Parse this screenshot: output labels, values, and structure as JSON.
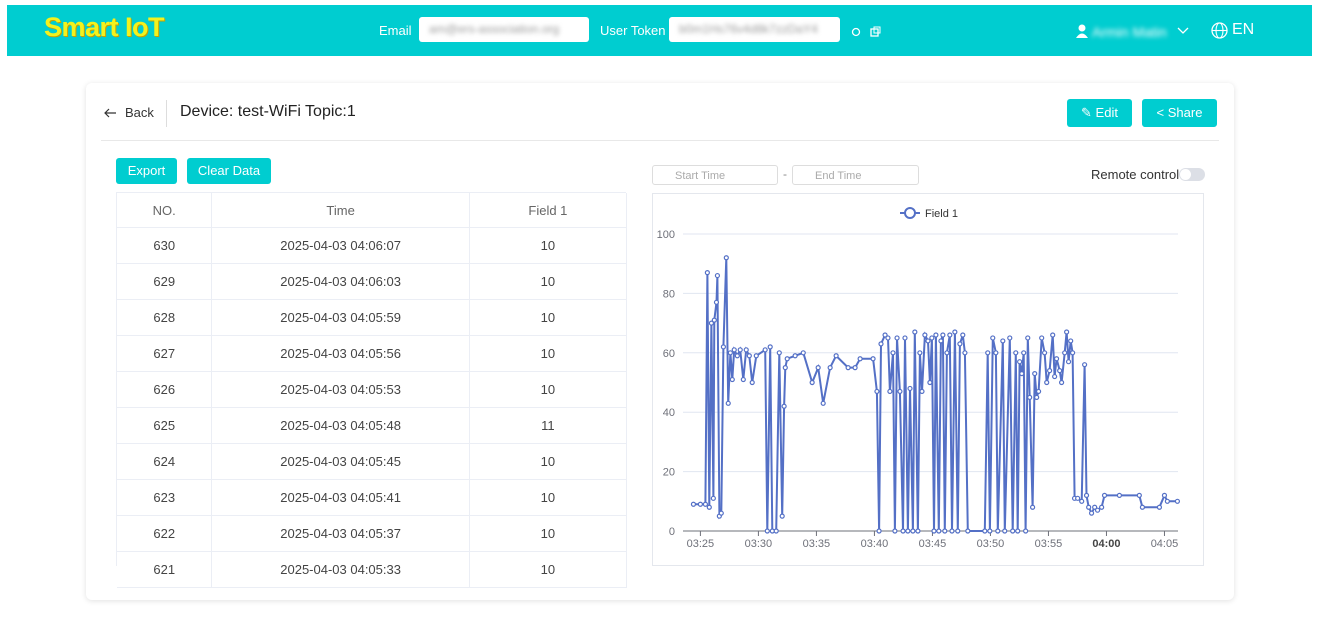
{
  "header": {
    "logo": "Smart IoT",
    "email_label": "Email",
    "email_value": "am@ers-association.org",
    "token_label": "User Token",
    "token_value": "b0m1Hs76v4d8k7zzDaY4",
    "user_name": "Armin Matin",
    "language": "EN"
  },
  "toolbar": {
    "back": "Back",
    "device_title": "Device: test-WiFi Topic:1",
    "edit": "Edit",
    "share": "Share"
  },
  "actions": {
    "export": "Export",
    "clear": "Clear Data"
  },
  "filters": {
    "start_time": "Start Time",
    "end_time": "End Time",
    "remote_control": "Remote control"
  },
  "table": {
    "columns": [
      "NO.",
      "Time",
      "Field 1"
    ],
    "rows": [
      [
        630,
        "2025-04-03 04:06:07",
        10
      ],
      [
        629,
        "2025-04-03 04:06:03",
        10
      ],
      [
        628,
        "2025-04-03 04:05:59",
        10
      ],
      [
        627,
        "2025-04-03 04:05:56",
        10
      ],
      [
        626,
        "2025-04-03 04:05:53",
        10
      ],
      [
        625,
        "2025-04-03 04:05:48",
        11
      ],
      [
        624,
        "2025-04-03 04:05:45",
        10
      ],
      [
        623,
        "2025-04-03 04:05:41",
        10
      ],
      [
        622,
        "2025-04-03 04:05:37",
        10
      ],
      [
        621,
        "2025-04-03 04:05:33",
        10
      ]
    ]
  },
  "chart_data": {
    "type": "line",
    "x": [
      "03:24:24",
      "03:25:00",
      "03:25:26",
      "03:25:36",
      "03:25:46",
      "03:25:57",
      "03:26:07",
      "03:26:12",
      "03:26:23",
      "03:26:28",
      "03:26:38",
      "03:26:48",
      "03:26:59",
      "03:27:14",
      "03:27:24",
      "03:27:35",
      "03:27:45",
      "03:27:55",
      "03:28:11",
      "03:28:26",
      "03:28:42",
      "03:28:57",
      "03:29:13",
      "03:29:28",
      "03:29:49",
      "03:30:35",
      "03:30:46",
      "03:31:01",
      "03:31:12",
      "03:31:32",
      "03:31:48",
      "03:32:03",
      "03:32:13",
      "03:32:19",
      "03:32:29",
      "03:33:10",
      "03:33:52",
      "03:34:38",
      "03:35:09",
      "03:35:35",
      "03:36:11",
      "03:36:42",
      "03:37:44",
      "03:38:20",
      "03:38:46",
      "03:39:53",
      "03:40:13",
      "03:40:24",
      "03:40:34",
      "03:40:55",
      "03:41:10",
      "03:41:20",
      "03:41:36",
      "03:41:46",
      "03:41:57",
      "03:42:12",
      "03:42:28",
      "03:42:38",
      "03:42:53",
      "03:43:04",
      "03:43:19",
      "03:43:29",
      "03:43:45",
      "03:43:55",
      "03:44:06",
      "03:44:21",
      "03:44:37",
      "03:44:47",
      "03:44:57",
      "03:45:08",
      "03:45:18",
      "03:45:33",
      "03:45:44",
      "03:45:54",
      "03:46:04",
      "03:46:15",
      "03:46:30",
      "03:46:41",
      "03:46:56",
      "03:47:11",
      "03:47:22",
      "03:47:37",
      "03:47:48",
      "03:48:03",
      "03:49:31",
      "03:49:46",
      "03:49:57",
      "03:50:12",
      "03:50:28",
      "03:50:38",
      "03:51:04",
      "03:51:14",
      "03:51:40",
      "03:51:55",
      "03:52:11",
      "03:52:21",
      "03:52:31",
      "03:52:42",
      "03:52:52",
      "03:53:02",
      "03:53:13",
      "03:53:23",
      "03:53:38",
      "03:53:49",
      "03:53:59",
      "03:54:09",
      "03:54:25",
      "03:54:40",
      "03:54:51",
      "03:55:06",
      "03:55:22",
      "03:55:32",
      "03:55:42",
      "03:55:58",
      "03:56:08",
      "03:56:24",
      "03:56:34",
      "03:56:44",
      "03:56:55",
      "03:57:05",
      "03:57:15",
      "03:57:31",
      "03:57:52",
      "03:58:07",
      "03:58:17",
      "03:58:28",
      "03:58:43",
      "03:58:59",
      "03:59:14",
      "03:59:35",
      "03:59:50",
      "04:01:07",
      "04:02:50",
      "04:03:06",
      "04:04:34",
      "04:05:00",
      "04:05:15",
      "04:06:07"
    ],
    "series": [
      {
        "name": "Field 1",
        "color": "#5470c6",
        "values": [
          9,
          9,
          9,
          87,
          8,
          70,
          11,
          71,
          77,
          86,
          5,
          6,
          62,
          92,
          43,
          60,
          51,
          61,
          59,
          61,
          51,
          61,
          59,
          50,
          59,
          61,
          0,
          62,
          0,
          0,
          60,
          5,
          42,
          55,
          58,
          59,
          60,
          50,
          55,
          43,
          55,
          59,
          55,
          55,
          58,
          58,
          47,
          0,
          63,
          66,
          65,
          47,
          60,
          0,
          65,
          47,
          0,
          65,
          0,
          48,
          0,
          67,
          0,
          60,
          47,
          66,
          64,
          50,
          65,
          0,
          66,
          0,
          64,
          66,
          0,
          60,
          66,
          0,
          67,
          0,
          63,
          66,
          60,
          0,
          0,
          60,
          0,
          65,
          60,
          0,
          64,
          0,
          65,
          0,
          60,
          0,
          57,
          53,
          60,
          0,
          65,
          45,
          8,
          53,
          45,
          47,
          65,
          60,
          50,
          54,
          66,
          52,
          58,
          54,
          50,
          60,
          67,
          57,
          64,
          60,
          11,
          11,
          10,
          56,
          12,
          8,
          6,
          8,
          7,
          8,
          12,
          12,
          12,
          8,
          8,
          12,
          10,
          10
        ]
      }
    ],
    "xlim": [
      "03:23:30",
      "04:06:10"
    ],
    "xticks": [
      "03:25",
      "03:30",
      "03:35",
      "03:40",
      "03:45",
      "03:50",
      "03:55",
      "04:00",
      "04:05"
    ],
    "ylim": [
      0,
      100
    ],
    "yticks": [
      0,
      20,
      40,
      60,
      80,
      100
    ],
    "grid": true,
    "legend": "top"
  }
}
